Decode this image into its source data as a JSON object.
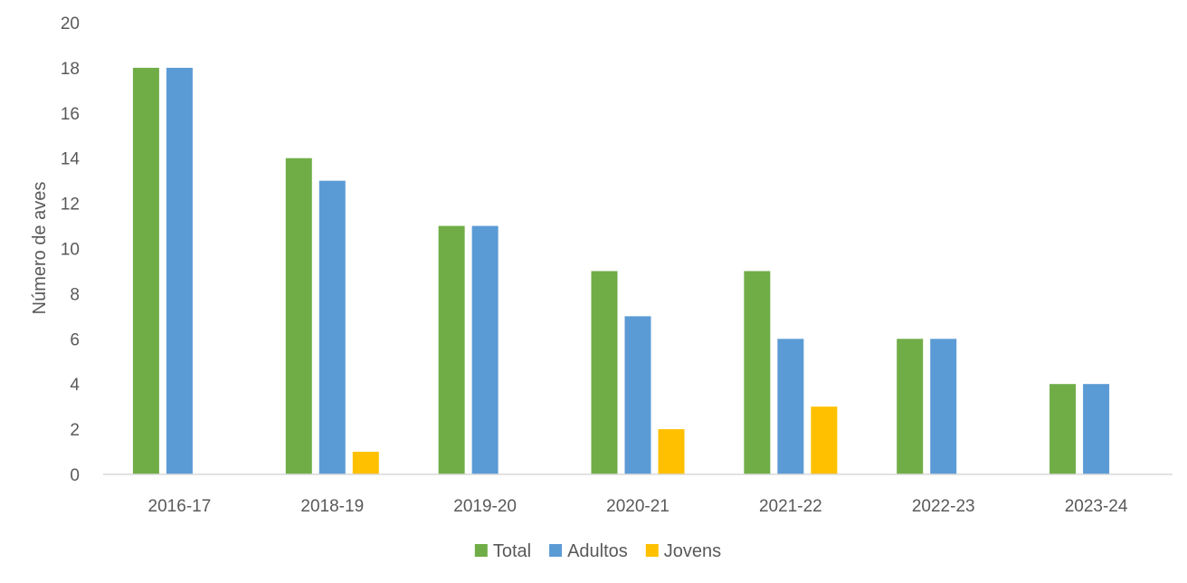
{
  "chart_data": {
    "type": "bar",
    "title": "",
    "xlabel": "",
    "ylabel": "Número de aves",
    "ylim": [
      0,
      20
    ],
    "yticks": [
      0,
      2,
      4,
      6,
      8,
      10,
      12,
      14,
      16,
      18,
      20
    ],
    "grid": false,
    "legend_position": "bottom",
    "categories": [
      "2016-17",
      "2018-19",
      "2019-20",
      "2020-21",
      "2021-22",
      "2022-23",
      "2023-24"
    ],
    "series": [
      {
        "name": "Total",
        "color": "#70AD47",
        "values": [
          18,
          14,
          11,
          9,
          9,
          6,
          4
        ]
      },
      {
        "name": "Adultos",
        "color": "#5B9BD5",
        "values": [
          18,
          13,
          11,
          7,
          6,
          6,
          4
        ]
      },
      {
        "name": "Jovens",
        "color": "#FFC000",
        "values": [
          0,
          1,
          0,
          2,
          3,
          0,
          0
        ]
      }
    ]
  }
}
